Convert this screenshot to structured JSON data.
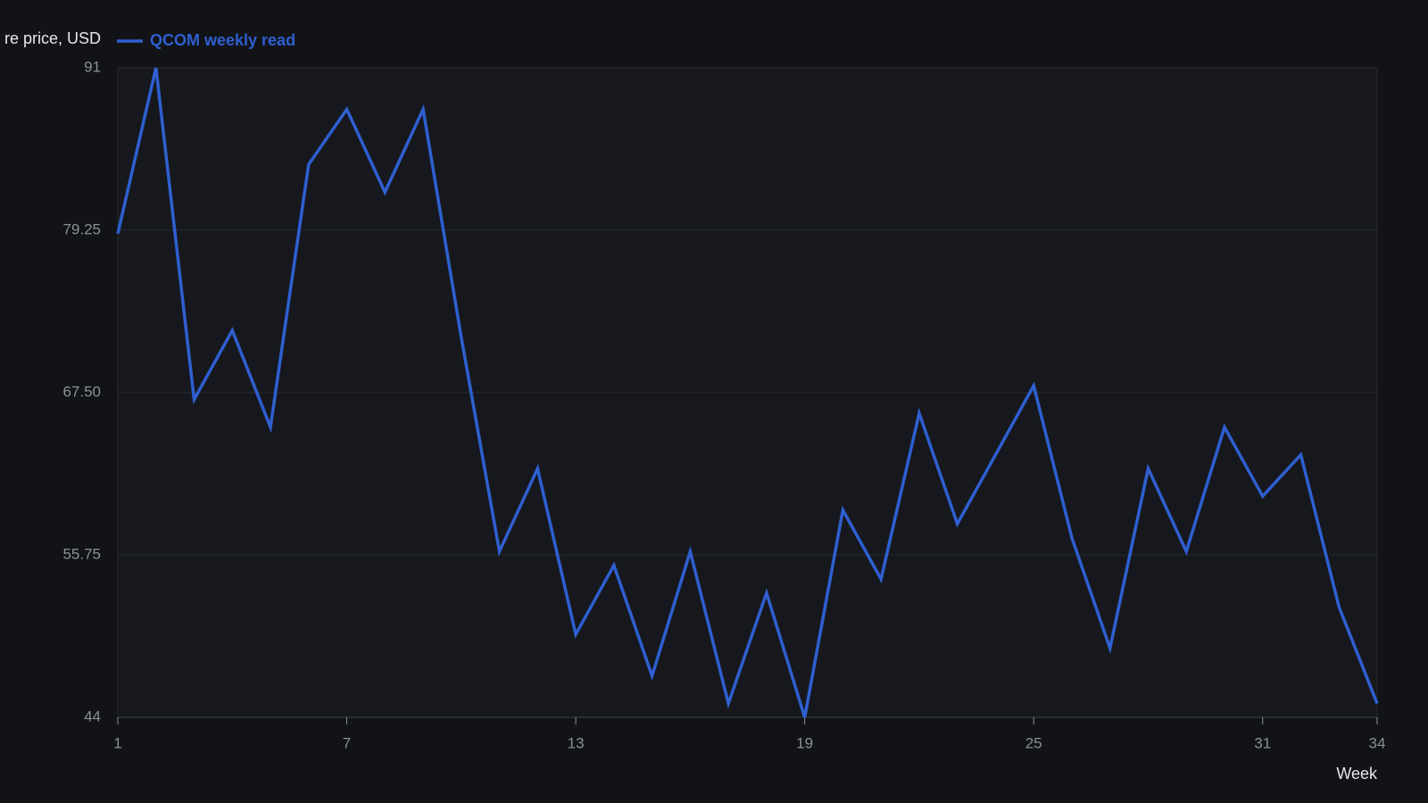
{
  "chart_data": {
    "type": "line",
    "y_label": "re price, USD",
    "x_label": "Week",
    "x": [
      1,
      2,
      3,
      4,
      5,
      6,
      7,
      8,
      9,
      10,
      11,
      12,
      13,
      14,
      15,
      16,
      17,
      18,
      19,
      20,
      21,
      22,
      23,
      24,
      25,
      26,
      27,
      28,
      29,
      30,
      31,
      32,
      33,
      34
    ],
    "series": [
      {
        "name": "QCOM weekly read",
        "color": "#2f5fd0",
        "values": [
          79,
          91,
          67,
          72,
          65,
          84,
          88,
          82,
          88,
          71.5,
          56,
          62,
          50,
          55,
          47,
          56,
          45,
          53,
          44,
          59,
          54,
          66,
          58,
          63,
          68,
          57,
          49,
          62,
          56,
          65,
          60,
          63,
          52,
          45
        ]
      }
    ],
    "xlim": [
      1,
      34
    ],
    "xticks": [
      1,
      7,
      13,
      19,
      25,
      31,
      34
    ],
    "ylim": [
      44,
      91
    ],
    "yticks": [
      44,
      55.75,
      {
        "value": 67.5,
        "label": "67.50"
      },
      79.25,
      91
    ],
    "grid": true
  }
}
